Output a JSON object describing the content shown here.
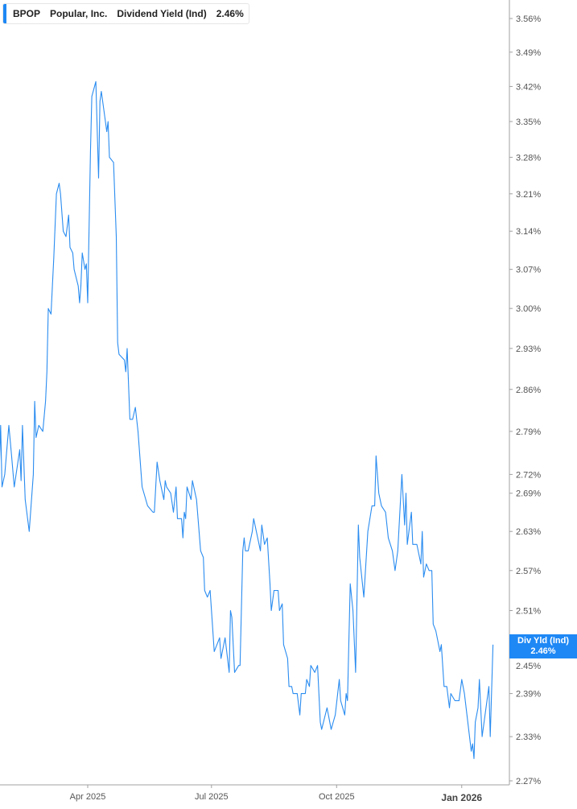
{
  "legend": {
    "ticker": "BPOP",
    "company": "Popular, Inc.",
    "metric": "Dividend Yield (Ind)",
    "value": "2.46%",
    "accent": "#1e88f5"
  },
  "badge": {
    "label": "Div Yld (Ind)",
    "value": "2.46%"
  },
  "chart_data": {
    "type": "line",
    "title": "",
    "yscale": "log",
    "ylim": [
      2.27,
      3.56
    ],
    "y_ticks": [
      "3.56%",
      "3.49%",
      "3.42%",
      "3.35%",
      "3.28%",
      "3.21%",
      "3.14%",
      "3.07%",
      "3.00%",
      "2.93%",
      "2.86%",
      "2.79%",
      "2.72%",
      "2.69%",
      "2.63%",
      "2.57%",
      "2.51%",
      "2.45%",
      "2.39%",
      "2.33%",
      "2.27%"
    ],
    "x_ticks": [
      {
        "date": "2025-04-01",
        "label": "Apr 2025",
        "bold": false
      },
      {
        "date": "2025-07-01",
        "label": "Jul 2025",
        "bold": false
      },
      {
        "date": "2025-10-01",
        "label": "Oct 2025",
        "bold": false
      },
      {
        "date": "2026-01-01",
        "label": "Jan 2026",
        "bold": true
      }
    ],
    "line_color": "#2a8cf0",
    "grid": false,
    "series": [
      {
        "points": [
          [
            "2025-01-26",
            2.73
          ],
          [
            "2025-01-27",
            2.8
          ],
          [
            "2025-01-28",
            2.7
          ],
          [
            "2025-01-30",
            2.72
          ],
          [
            "2025-02-02",
            2.8
          ],
          [
            "2025-02-04",
            2.75
          ],
          [
            "2025-02-06",
            2.7
          ],
          [
            "2025-02-10",
            2.76
          ],
          [
            "2025-02-11",
            2.71
          ],
          [
            "2025-02-12",
            2.8
          ],
          [
            "2025-02-14",
            2.68
          ],
          [
            "2025-02-17",
            2.63
          ],
          [
            "2025-02-20",
            2.72
          ],
          [
            "2025-02-21",
            2.84
          ],
          [
            "2025-02-22",
            2.78
          ],
          [
            "2025-02-24",
            2.8
          ],
          [
            "2025-02-27",
            2.79
          ],
          [
            "2025-03-01",
            2.84
          ],
          [
            "2025-03-02",
            2.89
          ],
          [
            "2025-03-03",
            3.0
          ],
          [
            "2025-03-05",
            2.99
          ],
          [
            "2025-03-06",
            3.04
          ],
          [
            "2025-03-07",
            3.09
          ],
          [
            "2025-03-09",
            3.21
          ],
          [
            "2025-03-11",
            3.23
          ],
          [
            "2025-03-12",
            3.21
          ],
          [
            "2025-03-14",
            3.14
          ],
          [
            "2025-03-16",
            3.13
          ],
          [
            "2025-03-18",
            3.17
          ],
          [
            "2025-03-19",
            3.11
          ],
          [
            "2025-03-21",
            3.1
          ],
          [
            "2025-03-22",
            3.07
          ],
          [
            "2025-03-25",
            3.04
          ],
          [
            "2025-03-26",
            3.01
          ],
          [
            "2025-03-27",
            3.04
          ],
          [
            "2025-03-28",
            3.1
          ],
          [
            "2025-03-30",
            3.07
          ],
          [
            "2025-03-31",
            3.08
          ],
          [
            "2025-04-01",
            3.01
          ],
          [
            "2025-04-03",
            3.29
          ],
          [
            "2025-04-04",
            3.4
          ],
          [
            "2025-04-07",
            3.43
          ],
          [
            "2025-04-09",
            3.24
          ],
          [
            "2025-04-10",
            3.39
          ],
          [
            "2025-04-11",
            3.41
          ],
          [
            "2025-04-13",
            3.37
          ],
          [
            "2025-04-15",
            3.33
          ],
          [
            "2025-04-16",
            3.35
          ],
          [
            "2025-04-17",
            3.28
          ],
          [
            "2025-04-20",
            3.27
          ],
          [
            "2025-04-22",
            3.13
          ],
          [
            "2025-04-23",
            2.94
          ],
          [
            "2025-04-24",
            2.92
          ],
          [
            "2025-04-28",
            2.91
          ],
          [
            "2025-04-29",
            2.89
          ],
          [
            "2025-04-30",
            2.93
          ],
          [
            "2025-05-02",
            2.81
          ],
          [
            "2025-05-04",
            2.81
          ],
          [
            "2025-05-06",
            2.83
          ],
          [
            "2025-05-08",
            2.79
          ],
          [
            "2025-05-11",
            2.7
          ],
          [
            "2025-05-15",
            2.67
          ],
          [
            "2025-05-19",
            2.66
          ],
          [
            "2025-05-20",
            2.66
          ],
          [
            "2025-05-22",
            2.74
          ],
          [
            "2025-05-24",
            2.71
          ],
          [
            "2025-05-27",
            2.68
          ],
          [
            "2025-05-28",
            2.71
          ],
          [
            "2025-05-29",
            2.7
          ],
          [
            "2025-06-01",
            2.69
          ],
          [
            "2025-06-03",
            2.66
          ],
          [
            "2025-06-05",
            2.7
          ],
          [
            "2025-06-06",
            2.65
          ],
          [
            "2025-06-09",
            2.65
          ],
          [
            "2025-06-10",
            2.62
          ],
          [
            "2025-06-11",
            2.66
          ],
          [
            "2025-06-12",
            2.65
          ],
          [
            "2025-06-13",
            2.7
          ],
          [
            "2025-06-16",
            2.68
          ],
          [
            "2025-06-17",
            2.71
          ],
          [
            "2025-06-20",
            2.68
          ],
          [
            "2025-06-23",
            2.6
          ],
          [
            "2025-06-25",
            2.59
          ],
          [
            "2025-06-26",
            2.54
          ],
          [
            "2025-06-28",
            2.53
          ],
          [
            "2025-06-30",
            2.54
          ],
          [
            "2025-07-02",
            2.48
          ],
          [
            "2025-07-03",
            2.45
          ],
          [
            "2025-07-07",
            2.47
          ],
          [
            "2025-07-08",
            2.44
          ],
          [
            "2025-07-11",
            2.47
          ],
          [
            "2025-07-14",
            2.42
          ],
          [
            "2025-07-15",
            2.51
          ],
          [
            "2025-07-16",
            2.5
          ],
          [
            "2025-07-18",
            2.42
          ],
          [
            "2025-07-21",
            2.43
          ],
          [
            "2025-07-22",
            2.43
          ],
          [
            "2025-07-24",
            2.6
          ],
          [
            "2025-07-25",
            2.62
          ],
          [
            "2025-07-26",
            2.6
          ],
          [
            "2025-07-28",
            2.6
          ],
          [
            "2025-07-31",
            2.63
          ],
          [
            "2025-08-01",
            2.65
          ],
          [
            "2025-08-06",
            2.6
          ],
          [
            "2025-08-07",
            2.64
          ],
          [
            "2025-08-09",
            2.61
          ],
          [
            "2025-08-11",
            2.62
          ],
          [
            "2025-08-13",
            2.55
          ],
          [
            "2025-08-14",
            2.51
          ],
          [
            "2025-08-16",
            2.54
          ],
          [
            "2025-08-19",
            2.54
          ],
          [
            "2025-08-20",
            2.51
          ],
          [
            "2025-08-22",
            2.52
          ],
          [
            "2025-08-23",
            2.46
          ],
          [
            "2025-08-26",
            2.44
          ],
          [
            "2025-08-27",
            2.4
          ],
          [
            "2025-08-29",
            2.4
          ],
          [
            "2025-08-30",
            2.39
          ],
          [
            "2025-09-02",
            2.39
          ],
          [
            "2025-09-04",
            2.36
          ],
          [
            "2025-09-05",
            2.39
          ],
          [
            "2025-09-08",
            2.39
          ],
          [
            "2025-09-09",
            2.41
          ],
          [
            "2025-09-11",
            2.4
          ],
          [
            "2025-09-12",
            2.43
          ],
          [
            "2025-09-15",
            2.42
          ],
          [
            "2025-09-17",
            2.43
          ],
          [
            "2025-09-19",
            2.35
          ],
          [
            "2025-09-20",
            2.34
          ],
          [
            "2025-09-24",
            2.37
          ],
          [
            "2025-09-25",
            2.36
          ],
          [
            "2025-09-27",
            2.34
          ],
          [
            "2025-09-30",
            2.36
          ],
          [
            "2025-10-03",
            2.41
          ],
          [
            "2025-10-04",
            2.38
          ],
          [
            "2025-10-07",
            2.36
          ],
          [
            "2025-10-08",
            2.39
          ],
          [
            "2025-10-09",
            2.38
          ],
          [
            "2025-10-11",
            2.55
          ],
          [
            "2025-10-13",
            2.51
          ],
          [
            "2025-10-15",
            2.42
          ],
          [
            "2025-10-17",
            2.64
          ],
          [
            "2025-10-18",
            2.59
          ],
          [
            "2025-10-21",
            2.53
          ],
          [
            "2025-10-24",
            2.63
          ],
          [
            "2025-10-27",
            2.67
          ],
          [
            "2025-10-29",
            2.67
          ],
          [
            "2025-10-30",
            2.75
          ],
          [
            "2025-11-01",
            2.69
          ],
          [
            "2025-11-03",
            2.67
          ],
          [
            "2025-11-06",
            2.66
          ],
          [
            "2025-11-08",
            2.62
          ],
          [
            "2025-11-11",
            2.6
          ],
          [
            "2025-11-13",
            2.57
          ],
          [
            "2025-11-15",
            2.6
          ],
          [
            "2025-11-18",
            2.72
          ],
          [
            "2025-11-20",
            2.64
          ],
          [
            "2025-11-21",
            2.69
          ],
          [
            "2025-11-22",
            2.61
          ],
          [
            "2025-11-25",
            2.66
          ],
          [
            "2025-11-26",
            2.61
          ],
          [
            "2025-11-29",
            2.61
          ],
          [
            "2025-12-02",
            2.58
          ],
          [
            "2025-12-03",
            2.63
          ],
          [
            "2025-12-04",
            2.56
          ],
          [
            "2025-12-06",
            2.58
          ],
          [
            "2025-12-08",
            2.57
          ],
          [
            "2025-12-10",
            2.57
          ],
          [
            "2025-12-11",
            2.49
          ],
          [
            "2025-12-13",
            2.48
          ],
          [
            "2025-12-16",
            2.45
          ],
          [
            "2025-12-17",
            2.46
          ],
          [
            "2025-12-19",
            2.4
          ],
          [
            "2025-12-21",
            2.4
          ],
          [
            "2025-12-23",
            2.37
          ],
          [
            "2025-12-24",
            2.39
          ],
          [
            "2025-12-27",
            2.38
          ],
          [
            "2025-12-30",
            2.38
          ],
          [
            "2026-01-01",
            2.41
          ],
          [
            "2026-01-03",
            2.39
          ],
          [
            "2026-01-08",
            2.31
          ],
          [
            "2026-01-09",
            2.32
          ],
          [
            "2026-01-10",
            2.3
          ],
          [
            "2026-01-11",
            2.35
          ],
          [
            "2026-01-13",
            2.37
          ],
          [
            "2026-01-14",
            2.41
          ],
          [
            "2026-01-16",
            2.33
          ],
          [
            "2026-01-21",
            2.4
          ],
          [
            "2026-01-22",
            2.33
          ],
          [
            "2026-01-24",
            2.46
          ]
        ]
      }
    ]
  }
}
